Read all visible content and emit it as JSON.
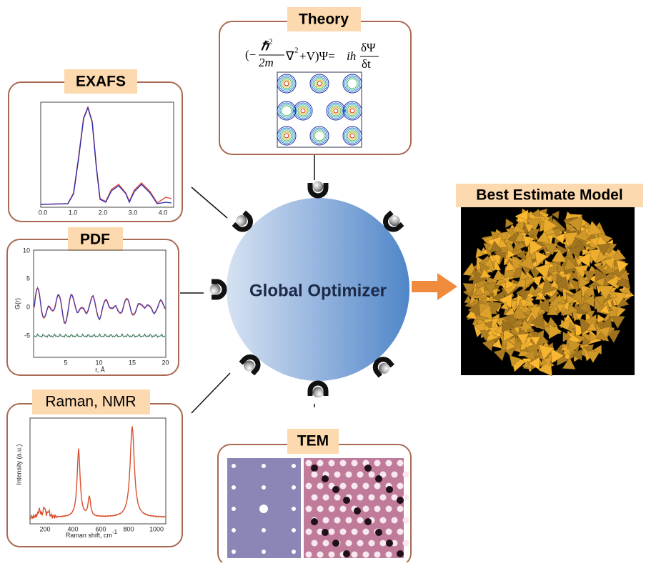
{
  "optimizer": {
    "label": "Global Optimizer"
  },
  "output": {
    "title": "Best Estimate Model"
  },
  "inputs": {
    "theory": {
      "title": "Theory",
      "equation": [
        "(−",
        "ℏ",
        "2",
        "2m",
        "∇",
        "2",
        "+V)Ψ=",
        "ih",
        "δΨ",
        "δt"
      ]
    },
    "exafs": {
      "title": "EXAFS",
      "x_ticks": [
        "0.0",
        "1.0",
        "2.0",
        "3.0",
        "4.0"
      ]
    },
    "pdf": {
      "title": "PDF",
      "y_ticks": [
        "10",
        "5",
        "0",
        "-5"
      ],
      "y_label": "G(r)",
      "x_ticks": [
        "5",
        "10",
        "15",
        "20"
      ],
      "x_label": "r, Å"
    },
    "raman": {
      "title": "Raman, NMR",
      "x_ticks": [
        "200",
        "400",
        "600",
        "800",
        "1000"
      ],
      "y_label": "Intensity (a.u.)",
      "x_label": "Raman shift, cm",
      "x_label_sup": "-1"
    },
    "tem": {
      "title": "TEM"
    }
  }
}
